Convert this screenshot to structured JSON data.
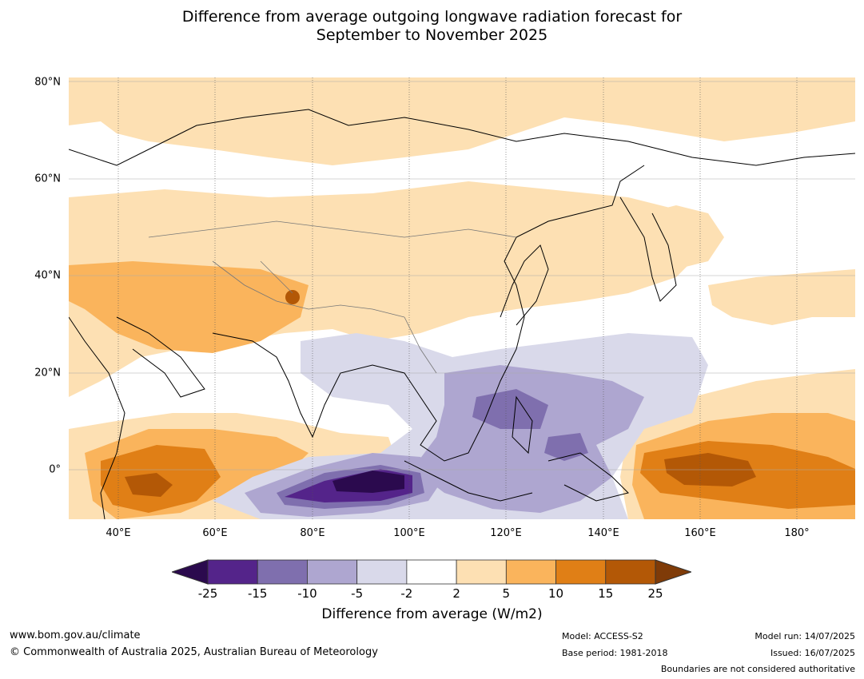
{
  "title_line1": "Difference from average outgoing longwave radiation forecast for",
  "title_line2": "September to November 2025",
  "lat_labels": [
    "80°N",
    "60°N",
    "40°N",
    "20°N",
    "0°"
  ],
  "lon_labels": [
    "40°E",
    "60°E",
    "80°E",
    "100°E",
    "120°E",
    "140°E",
    "160°E",
    "180°"
  ],
  "colorbar": {
    "levels": [
      "-25",
      "-15",
      "-10",
      "-5",
      "-2",
      "2",
      "5",
      "10",
      "15",
      "25"
    ],
    "colors": [
      "#2b0a4e",
      "#54248a",
      "#7f6fae",
      "#aea6d0",
      "#d9d9ea",
      "#ffffff",
      "#fde0b3",
      "#fab45c",
      "#e07f16",
      "#b35806",
      "#7f3b08"
    ],
    "title": "Difference from average (W/m2)"
  },
  "footer": {
    "website": "www.bom.gov.au/climate",
    "copyright": "© Commonwealth of Australia 2025, Australian Bureau of Meteorology",
    "model": "Model: ACCESS-S2",
    "base_period": "Base period: 1981-2018",
    "model_run": "Model run: 14/07/2025",
    "issued": "Issued: 16/07/2025",
    "disclaimer": "Boundaries are not considered authoritative"
  }
}
